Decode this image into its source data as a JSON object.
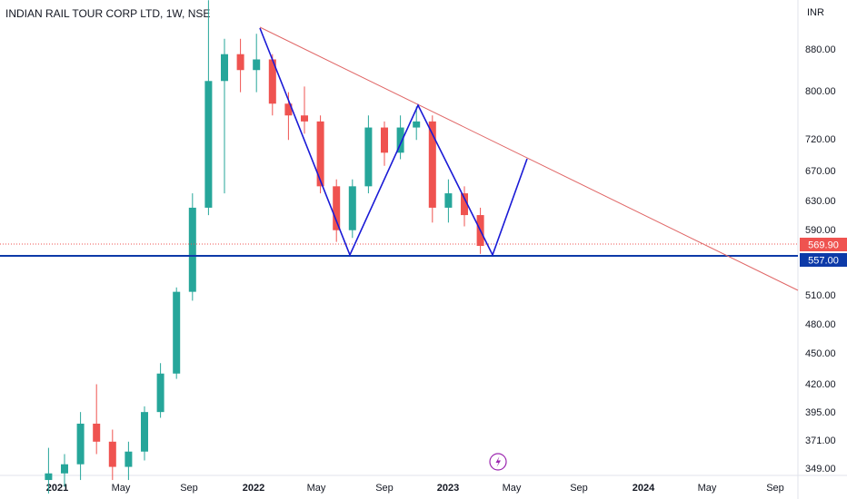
{
  "chart_data": {
    "type": "candlestick",
    "title": "INDIAN RAIL TOUR CORP LTD, 1W, NSE",
    "currency": "INR",
    "colors": {
      "up": "#26a69a",
      "down": "#ef5350",
      "trend_line": "#e06666",
      "pattern_line": "#1a1ad6",
      "support_line": "#0d3aa8",
      "price_badge": "#ef5350",
      "support_badge": "#0d3aa8"
    },
    "y_axis": {
      "scale": "log",
      "ticks": [
        "880.00",
        "800.00",
        "720.00",
        "670.00",
        "630.00",
        "590.00",
        "510.00",
        "480.00",
        "450.00",
        "420.00",
        "395.00",
        "371.00",
        "349.00"
      ]
    },
    "x_axis": {
      "ticks": [
        "2021",
        "May",
        "Sep",
        "2022",
        "May",
        "Sep",
        "2023",
        "May",
        "Sep",
        "2024",
        "May",
        "Sep"
      ],
      "bold_ticks": [
        "2021",
        "2022",
        "2023",
        "2024"
      ]
    },
    "last_price": "569.90",
    "support_level": "557.00",
    "candles_approx": [
      {
        "t": "2020-12",
        "o": 340,
        "h": 365,
        "l": 330,
        "c": 345
      },
      {
        "t": "2021-01",
        "o": 345,
        "h": 360,
        "l": 335,
        "c": 352
      },
      {
        "t": "2021-02",
        "o": 352,
        "h": 395,
        "l": 340,
        "c": 385
      },
      {
        "t": "2021-03",
        "o": 385,
        "h": 420,
        "l": 360,
        "c": 370
      },
      {
        "t": "2021-04",
        "o": 370,
        "h": 380,
        "l": 340,
        "c": 350
      },
      {
        "t": "2021-05",
        "o": 350,
        "h": 370,
        "l": 340,
        "c": 362
      },
      {
        "t": "2021-06",
        "o": 362,
        "h": 400,
        "l": 355,
        "c": 395
      },
      {
        "t": "2021-07",
        "o": 395,
        "h": 440,
        "l": 390,
        "c": 430
      },
      {
        "t": "2021-08",
        "o": 430,
        "h": 520,
        "l": 425,
        "c": 515
      },
      {
        "t": "2021-09",
        "o": 515,
        "h": 640,
        "l": 505,
        "c": 620
      },
      {
        "t": "2021-10",
        "o": 620,
        "h": 980,
        "l": 610,
        "c": 820
      },
      {
        "t": "2021-11",
        "o": 820,
        "h": 900,
        "l": 640,
        "c": 870
      },
      {
        "t": "2021-12",
        "o": 870,
        "h": 900,
        "l": 800,
        "c": 840
      },
      {
        "t": "2022-01",
        "o": 840,
        "h": 910,
        "l": 800,
        "c": 860
      },
      {
        "t": "2022-02",
        "o": 860,
        "h": 870,
        "l": 760,
        "c": 780
      },
      {
        "t": "2022-03",
        "o": 780,
        "h": 800,
        "l": 720,
        "c": 760
      },
      {
        "t": "2022-04",
        "o": 760,
        "h": 810,
        "l": 730,
        "c": 750
      },
      {
        "t": "2022-05",
        "o": 750,
        "h": 760,
        "l": 640,
        "c": 650
      },
      {
        "t": "2022-06",
        "o": 650,
        "h": 660,
        "l": 575,
        "c": 590
      },
      {
        "t": "2022-07",
        "o": 590,
        "h": 660,
        "l": 580,
        "c": 650
      },
      {
        "t": "2022-08",
        "o": 650,
        "h": 760,
        "l": 640,
        "c": 740
      },
      {
        "t": "2022-09",
        "o": 740,
        "h": 750,
        "l": 680,
        "c": 700
      },
      {
        "t": "2022-10",
        "o": 700,
        "h": 760,
        "l": 690,
        "c": 740
      },
      {
        "t": "2022-11",
        "o": 740,
        "h": 775,
        "l": 720,
        "c": 750
      },
      {
        "t": "2022-12",
        "o": 750,
        "h": 760,
        "l": 600,
        "c": 620
      },
      {
        "t": "2023-01",
        "o": 620,
        "h": 660,
        "l": 600,
        "c": 640
      },
      {
        "t": "2023-02",
        "o": 640,
        "h": 650,
        "l": 595,
        "c": 610
      },
      {
        "t": "2023-03",
        "o": 610,
        "h": 620,
        "l": 560,
        "c": 569.9
      }
    ]
  },
  "icons": {
    "flash": "lightning-icon"
  }
}
